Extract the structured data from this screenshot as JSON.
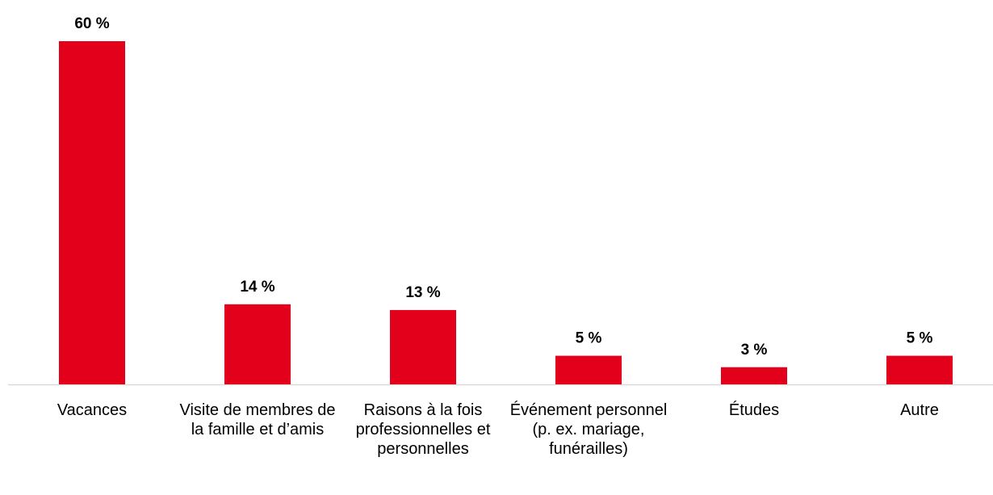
{
  "chart_data": {
    "type": "bar",
    "categories": [
      "Vacances",
      "Visite de membres de la famille et d’amis",
      "Raisons à la fois professionnelles et personnelles",
      "Événement personnel (p. ex. mariage, funérailles)",
      "Études",
      "Autre"
    ],
    "values": [
      60,
      14,
      13,
      5,
      3,
      5
    ],
    "value_labels": [
      "60 %",
      "14 %",
      "13 %",
      "5 %",
      "3 %",
      "5 %"
    ],
    "color": "#e3001b"
  }
}
